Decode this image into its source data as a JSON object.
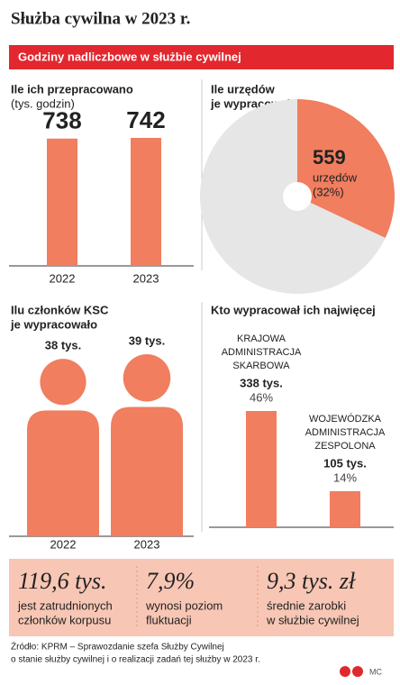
{
  "title": "Służba cywilna w 2023 r.",
  "banner": "Godziny nadliczbowe w służbie cywilnej",
  "chart_data": [
    {
      "type": "bar",
      "title": [
        "Ile ich przepracowano"
      ],
      "subtitle": "(tys. godzin)",
      "categories": [
        "2022",
        "2023"
      ],
      "values": [
        738,
        742
      ],
      "color": "#f07e5f"
    },
    {
      "type": "pie",
      "title": [
        "Ile urzędów",
        "je wypracowało"
      ],
      "values": [
        32,
        68
      ],
      "colors": [
        "#f07e5f",
        "#e6e6e6"
      ],
      "highlight": {
        "count": 559,
        "unit": "urzędów",
        "label": "(32%)"
      }
    },
    {
      "type": "pictogram",
      "title": [
        "Ilu członków KSC",
        "je wypracowało"
      ],
      "categories": [
        "2022",
        "2023"
      ],
      "values": [
        38,
        39
      ],
      "value_labels": [
        "38 tys.",
        "39 tys."
      ],
      "color": "#f07e5f"
    },
    {
      "type": "bar",
      "title": [
        "Kto wypracował ich najwięcej"
      ],
      "categories": [
        [
          "KRAJOWA",
          "ADMINISTRACJA",
          "SKARBOWA"
        ],
        [
          "WOJEWÓDZKA",
          "ADMINISTRACJA",
          "ZESPOLONA"
        ]
      ],
      "values": [
        338,
        105
      ],
      "value_labels": [
        "338 tys.",
        "105 tys."
      ],
      "share_labels": [
        "46%",
        "14%"
      ],
      "color": "#f07e5f"
    }
  ],
  "stats": [
    {
      "value": "119,6 tys.",
      "text": [
        "jest zatrudnionych",
        "członków korpusu"
      ]
    },
    {
      "value": "7,9%",
      "text": [
        "wynosi poziom",
        "fluktuacji"
      ]
    },
    {
      "value": "9,3 tys. zł",
      "text": [
        "średnie zarobki",
        "w służbie cywilnej"
      ]
    }
  ],
  "source": [
    "Źródło: KPRM – Sprawozdanie szefa Służby Cywilnej",
    "o stanie służby cywilnej i o realizacji zadań tej służby w 2023 r."
  ],
  "credit": "MC"
}
